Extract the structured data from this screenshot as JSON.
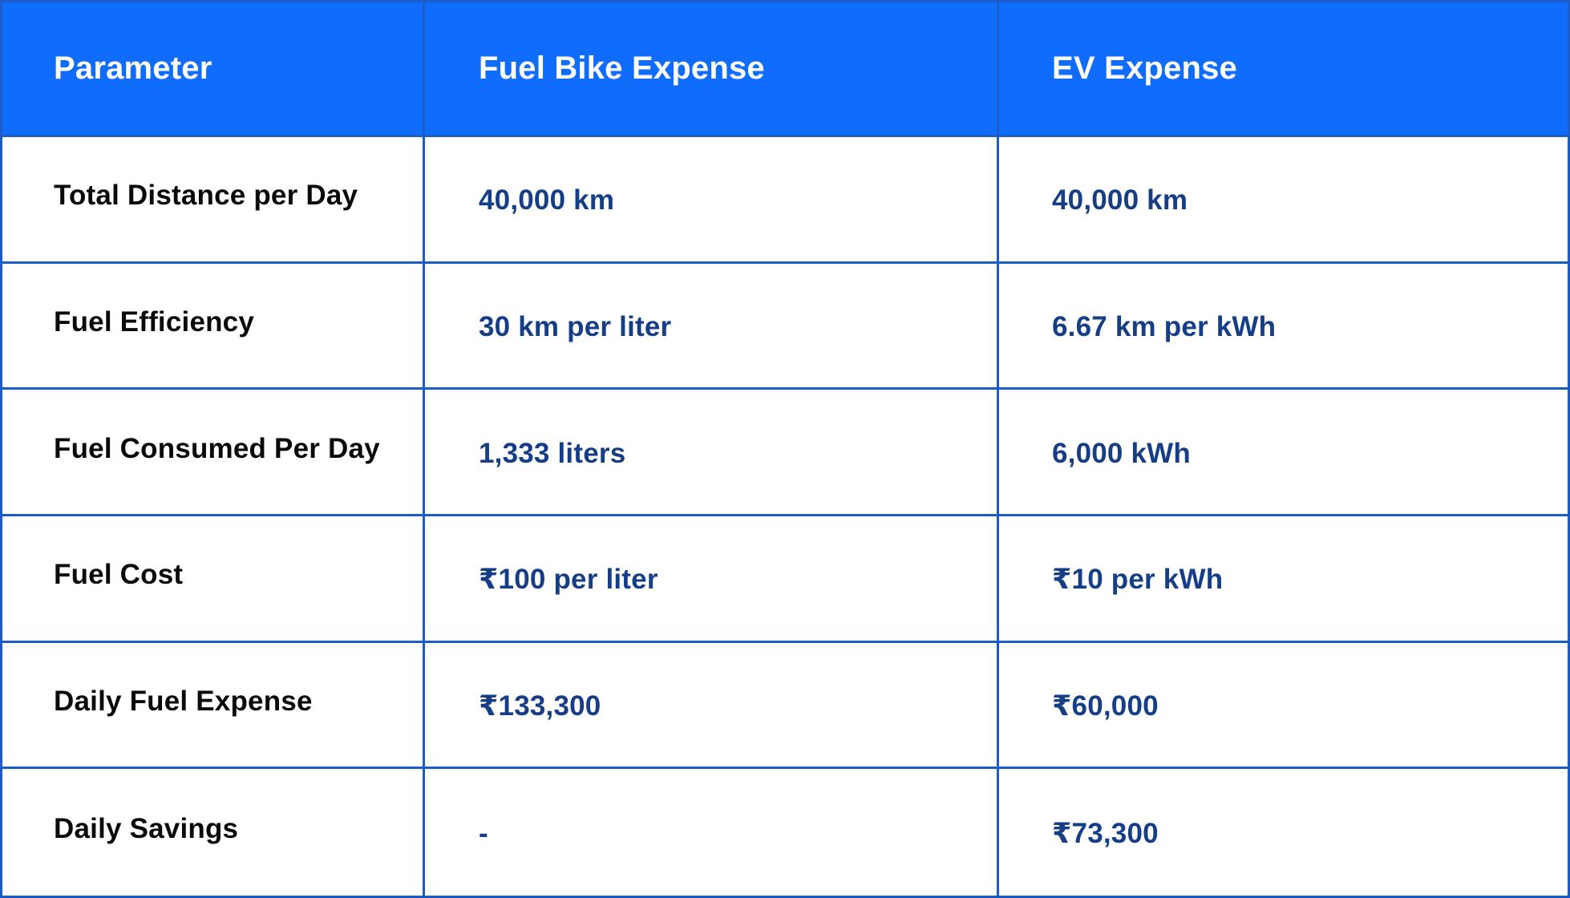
{
  "header": {
    "parameter": "Parameter",
    "fuel_bike": "Fuel Bike Expense",
    "ev": "EV Expense"
  },
  "rows": [
    {
      "parameter": "Total Distance per Day",
      "fuel_bike": "40,000 km",
      "ev": "40,000 km"
    },
    {
      "parameter": "Fuel Efficiency",
      "fuel_bike": "30 km per liter",
      "ev": "6.67 km per kWh"
    },
    {
      "parameter": "Fuel Consumed Per Day",
      "fuel_bike": "1,333 liters",
      "ev": "6,000 kWh"
    },
    {
      "parameter": "Fuel Cost",
      "fuel_bike": "₹100 per liter",
      "ev": "₹10 per kWh"
    },
    {
      "parameter": "Daily Fuel Expense",
      "fuel_bike": "₹133,300",
      "ev": "₹60,000"
    },
    {
      "parameter": "Daily Savings",
      "fuel_bike": "-",
      "ev": "₹73,300"
    }
  ],
  "colors": {
    "header_bg": "#0f6cfd",
    "header_text": "#ffffff",
    "border": "#1a5cc8",
    "param_text": "#0a0a0a",
    "value_text": "#153e86"
  }
}
